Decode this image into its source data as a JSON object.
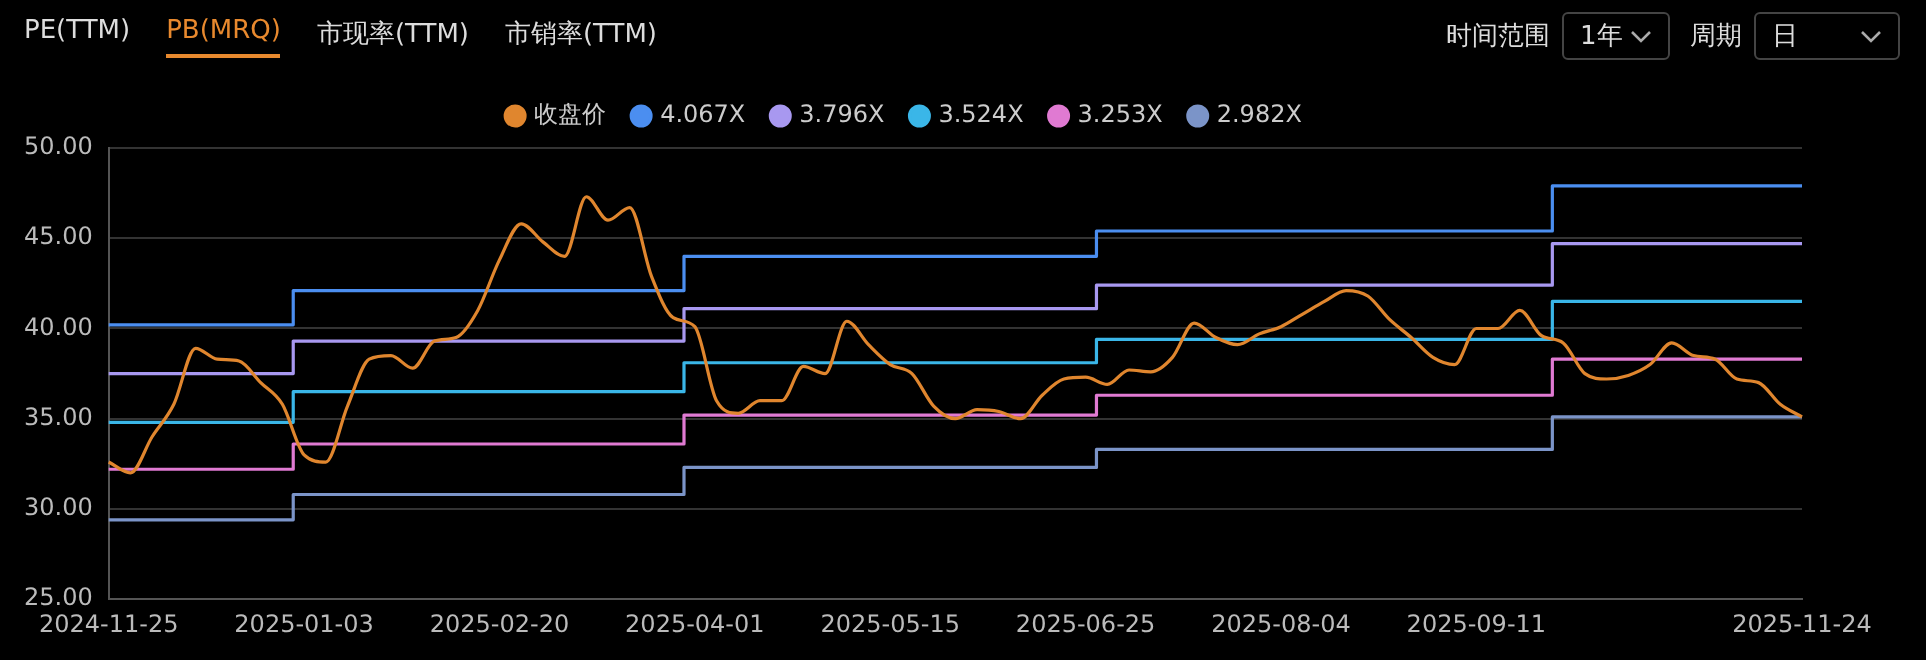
{
  "chart_data": {
    "type": "line",
    "annotations": [
      "PE(TTM)",
      "PB(MRQ)",
      "市现率(TTM)",
      "市销率(TTM)",
      "时间范围",
      "1年",
      "周期",
      "日"
    ],
    "categories": [
      "2024-11-25",
      null,
      null,
      null,
      null,
      null,
      null,
      null,
      null,
      "2025-01-03",
      null,
      null,
      null,
      null,
      null,
      null,
      null,
      null,
      "2025-02-20",
      null,
      null,
      null,
      null,
      null,
      null,
      null,
      null,
      "2025-04-01",
      null,
      null,
      null,
      null,
      null,
      null,
      null,
      null,
      "2025-05-15",
      null,
      null,
      null,
      null,
      null,
      null,
      null,
      null,
      "2025-06-25",
      null,
      null,
      null,
      null,
      null,
      null,
      null,
      null,
      "2025-08-04",
      null,
      null,
      null,
      null,
      null,
      null,
      null,
      null,
      "2025-09-11",
      null,
      null,
      null,
      null,
      null,
      null,
      null,
      null,
      null,
      null,
      null,
      null,
      null,
      null,
      "2025-11-24"
    ],
    "series": [
      {
        "name": "收盘价",
        "type": "line",
        "color": "#e0862e",
        "values": [
          32.6,
          32.0,
          34.0,
          35.8,
          38.9,
          38.3,
          38.2,
          37.0,
          35.8,
          33.0,
          32.6,
          35.7,
          38.3,
          38.5,
          37.8,
          39.3,
          39.5,
          41.0,
          43.8,
          45.8,
          44.8,
          44.0,
          47.3,
          46.0,
          46.7,
          42.9,
          40.6,
          40.1,
          36.0,
          35.3,
          36.0,
          36.0,
          37.9,
          37.5,
          40.4,
          39.1,
          38.0,
          37.5,
          35.7,
          35.0,
          35.5,
          35.4,
          35.0,
          36.3,
          37.2,
          37.3,
          36.9,
          37.7,
          37.6,
          38.4,
          40.3,
          39.5,
          39.1,
          39.7,
          40.1,
          40.8,
          41.5,
          42.1,
          41.8,
          40.5,
          39.5,
          38.4,
          38.0,
          40.0,
          40.0,
          41.0,
          39.6,
          39.2,
          37.5,
          37.2,
          37.4,
          38.0,
          39.2,
          38.5,
          38.3,
          37.2,
          37.0,
          35.8,
          35.1
        ]
      },
      {
        "name": "4.067X",
        "type": "step",
        "color": "#4b8ef0",
        "values": [
          40.2,
          40.2,
          40.2,
          40.2,
          40.2,
          40.2,
          40.2,
          40.2,
          40.2,
          42.1,
          42.1,
          42.1,
          42.1,
          42.1,
          42.1,
          42.1,
          42.1,
          42.1,
          42.1,
          42.1,
          42.1,
          42.1,
          42.1,
          42.1,
          42.1,
          42.1,
          42.1,
          44.0,
          44.0,
          44.0,
          44.0,
          44.0,
          44.0,
          44.0,
          44.0,
          44.0,
          44.0,
          44.0,
          44.0,
          44.0,
          44.0,
          44.0,
          44.0,
          44.0,
          44.0,
          44.0,
          45.4,
          45.4,
          45.4,
          45.4,
          45.4,
          45.4,
          45.4,
          45.4,
          45.4,
          45.4,
          45.4,
          45.4,
          45.4,
          45.4,
          45.4,
          45.4,
          45.4,
          45.4,
          45.4,
          45.4,
          45.4,
          47.9,
          47.9,
          47.9,
          47.9,
          47.9,
          47.9,
          47.9,
          47.9,
          47.9,
          47.9,
          47.9,
          47.9
        ]
      },
      {
        "name": "3.796X",
        "type": "step",
        "color": "#a898f0",
        "values": [
          37.5,
          37.5,
          37.5,
          37.5,
          37.5,
          37.5,
          37.5,
          37.5,
          37.5,
          39.3,
          39.3,
          39.3,
          39.3,
          39.3,
          39.3,
          39.3,
          39.3,
          39.3,
          39.3,
          39.3,
          39.3,
          39.3,
          39.3,
          39.3,
          39.3,
          39.3,
          39.3,
          41.1,
          41.1,
          41.1,
          41.1,
          41.1,
          41.1,
          41.1,
          41.1,
          41.1,
          41.1,
          41.1,
          41.1,
          41.1,
          41.1,
          41.1,
          41.1,
          41.1,
          41.1,
          41.1,
          42.4,
          42.4,
          42.4,
          42.4,
          42.4,
          42.4,
          42.4,
          42.4,
          42.4,
          42.4,
          42.4,
          42.4,
          42.4,
          42.4,
          42.4,
          42.4,
          42.4,
          42.4,
          42.4,
          42.4,
          42.4,
          44.7,
          44.7,
          44.7,
          44.7,
          44.7,
          44.7,
          44.7,
          44.7,
          44.7,
          44.7,
          44.7,
          44.7
        ]
      },
      {
        "name": "3.524X",
        "type": "step",
        "color": "#3ab6e8",
        "values": [
          34.8,
          34.8,
          34.8,
          34.8,
          34.8,
          34.8,
          34.8,
          34.8,
          34.8,
          36.5,
          36.5,
          36.5,
          36.5,
          36.5,
          36.5,
          36.5,
          36.5,
          36.5,
          36.5,
          36.5,
          36.5,
          36.5,
          36.5,
          36.5,
          36.5,
          36.5,
          36.5,
          38.1,
          38.1,
          38.1,
          38.1,
          38.1,
          38.1,
          38.1,
          38.1,
          38.1,
          38.1,
          38.1,
          38.1,
          38.1,
          38.1,
          38.1,
          38.1,
          38.1,
          38.1,
          38.1,
          39.4,
          39.4,
          39.4,
          39.4,
          39.4,
          39.4,
          39.4,
          39.4,
          39.4,
          39.4,
          39.4,
          39.4,
          39.4,
          39.4,
          39.4,
          39.4,
          39.4,
          39.4,
          39.4,
          39.4,
          39.4,
          41.5,
          41.5,
          41.5,
          41.5,
          41.5,
          41.5,
          41.5,
          41.5,
          41.5,
          41.5,
          41.5,
          41.5
        ]
      },
      {
        "name": "3.253X",
        "type": "step",
        "color": "#e07ad2",
        "values": [
          32.2,
          32.2,
          32.2,
          32.2,
          32.2,
          32.2,
          32.2,
          32.2,
          32.2,
          33.6,
          33.6,
          33.6,
          33.6,
          33.6,
          33.6,
          33.6,
          33.6,
          33.6,
          33.6,
          33.6,
          33.6,
          33.6,
          33.6,
          33.6,
          33.6,
          33.6,
          33.6,
          35.2,
          35.2,
          35.2,
          35.2,
          35.2,
          35.2,
          35.2,
          35.2,
          35.2,
          35.2,
          35.2,
          35.2,
          35.2,
          35.2,
          35.2,
          35.2,
          35.2,
          35.2,
          35.2,
          36.3,
          36.3,
          36.3,
          36.3,
          36.3,
          36.3,
          36.3,
          36.3,
          36.3,
          36.3,
          36.3,
          36.3,
          36.3,
          36.3,
          36.3,
          36.3,
          36.3,
          36.3,
          36.3,
          36.3,
          36.3,
          38.3,
          38.3,
          38.3,
          38.3,
          38.3,
          38.3,
          38.3,
          38.3,
          38.3,
          38.3,
          38.3,
          38.3
        ]
      },
      {
        "name": "2.982X",
        "type": "step",
        "color": "#7b94c8",
        "values": [
          29.4,
          29.4,
          29.4,
          29.4,
          29.4,
          29.4,
          29.4,
          29.4,
          29.4,
          30.8,
          30.8,
          30.8,
          30.8,
          30.8,
          30.8,
          30.8,
          30.8,
          30.8,
          30.8,
          30.8,
          30.8,
          30.8,
          30.8,
          30.8,
          30.8,
          30.8,
          30.8,
          32.3,
          32.3,
          32.3,
          32.3,
          32.3,
          32.3,
          32.3,
          32.3,
          32.3,
          32.3,
          32.3,
          32.3,
          32.3,
          32.3,
          32.3,
          32.3,
          32.3,
          32.3,
          32.3,
          33.3,
          33.3,
          33.3,
          33.3,
          33.3,
          33.3,
          33.3,
          33.3,
          33.3,
          33.3,
          33.3,
          33.3,
          33.3,
          33.3,
          33.3,
          33.3,
          33.3,
          33.3,
          33.3,
          33.3,
          33.3,
          35.1,
          35.1,
          35.1,
          35.1,
          35.1,
          35.1,
          35.1,
          35.1,
          35.1,
          35.1,
          35.1,
          35.1
        ]
      }
    ],
    "ylim": [
      25,
      50
    ],
    "yticks": [
      {
        "value": 25,
        "label": "25.00"
      },
      {
        "value": 30,
        "label": "30.00"
      },
      {
        "value": 35,
        "label": "35.00"
      },
      {
        "value": 40,
        "label": "40.00"
      },
      {
        "value": 45,
        "label": "45.00"
      },
      {
        "value": 50,
        "label": "50.00"
      }
    ],
    "grid": "y",
    "legend": "top",
    "marker": "none",
    "line_style": "solid"
  }
}
